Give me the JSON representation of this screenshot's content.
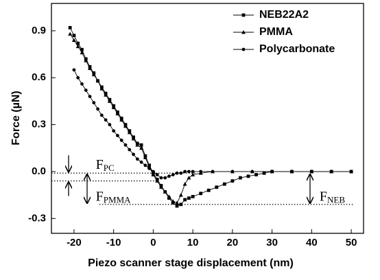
{
  "chart_data": {
    "type": "line",
    "xlabel": "Piezo scanner stage displacement (nm)",
    "ylabel": "Force (µN)",
    "xlim": [
      -25.7,
      53.1
    ],
    "ylim": [
      -0.395,
      1.075
    ],
    "xticks": [
      -20,
      -10,
      0,
      10,
      20,
      30,
      40,
      50
    ],
    "yticks": [
      -0.3,
      {
        "value": 0,
        "label": "0.0"
      },
      0.3,
      0.6,
      0.9
    ],
    "legend": "upper right",
    "series": [
      {
        "name": "NEB22A2",
        "marker": "square",
        "color": "#000000",
        "x": [
          -21,
          -20,
          -19,
          -18,
          -17,
          -16,
          -15,
          -14,
          -13,
          -12,
          -11,
          -10,
          -9,
          -8,
          -7,
          -6,
          -5,
          -4,
          -3,
          -2,
          -1,
          0,
          1,
          2,
          3,
          4,
          5,
          6,
          7,
          8,
          9,
          10,
          12,
          14,
          16,
          18,
          20,
          22,
          24,
          26,
          28,
          30,
          35,
          40,
          45,
          50
        ],
        "values": [
          0.92,
          0.87,
          0.82,
          0.78,
          0.72,
          0.67,
          0.63,
          0.58,
          0.54,
          0.5,
          0.46,
          0.42,
          0.38,
          0.34,
          0.3,
          0.26,
          0.22,
          0.18,
          0.17,
          0.1,
          0.04,
          -0.01,
          -0.05,
          -0.09,
          -0.13,
          -0.17,
          -0.2,
          -0.22,
          -0.21,
          -0.18,
          -0.17,
          -0.16,
          -0.14,
          -0.12,
          -0.1,
          -0.08,
          -0.06,
          -0.04,
          -0.03,
          -0.02,
          -0.01,
          0,
          0,
          0,
          0,
          0
        ]
      },
      {
        "name": "PMMA",
        "marker": "triangle",
        "color": "#000000",
        "x": [
          -21,
          -20,
          -19,
          -18,
          -17,
          -16,
          -15,
          -14,
          -13,
          -12,
          -11,
          -10,
          -9,
          -8,
          -7,
          -6,
          -5,
          -4,
          -3,
          -2,
          -1,
          0,
          1,
          2,
          3,
          4,
          5,
          6,
          7,
          8,
          9,
          10,
          12,
          15,
          20,
          25,
          30,
          35,
          40,
          45,
          50
        ],
        "values": [
          0.88,
          0.84,
          0.8,
          0.76,
          0.71,
          0.66,
          0.62,
          0.58,
          0.53,
          0.49,
          0.45,
          0.41,
          0.37,
          0.33,
          0.29,
          0.25,
          0.21,
          0.17,
          0.15,
          0.09,
          0.03,
          -0.02,
          -0.06,
          -0.1,
          -0.13,
          -0.16,
          -0.19,
          -0.2,
          -0.15,
          -0.08,
          -0.04,
          -0.02,
          -0.01,
          0,
          0,
          0,
          0,
          0,
          0,
          0,
          0
        ]
      },
      {
        "name": "Polycarbonate",
        "marker": "circle",
        "color": "#000000",
        "x": [
          -20,
          -19,
          -18,
          -17,
          -16,
          -15,
          -14,
          -13,
          -12,
          -11,
          -10,
          -9,
          -8,
          -7,
          -6,
          -5,
          -4,
          -3,
          -2,
          -1,
          0,
          1,
          2,
          3,
          4,
          5,
          6,
          7,
          8,
          9,
          10,
          12,
          15,
          20,
          25,
          30,
          35,
          40,
          45,
          50
        ],
        "values": [
          0.65,
          0.6,
          0.56,
          0.52,
          0.48,
          0.44,
          0.4,
          0.36,
          0.33,
          0.3,
          0.26,
          0.23,
          0.2,
          0.17,
          0.14,
          0.11,
          0.08,
          0.06,
          0.04,
          0.02,
          0,
          -0.02,
          -0.04,
          -0.04,
          -0.03,
          -0.02,
          -0.01,
          -0.01,
          0,
          0,
          0,
          0,
          0,
          0,
          0,
          0,
          0,
          0,
          0,
          0
        ]
      }
    ],
    "reference_lines": [
      {
        "y": -0.01,
        "x": [
          -25.7,
          10.7
        ]
      },
      {
        "y": -0.06,
        "x": [
          -25.7,
          1.1
        ]
      },
      {
        "y": -0.21,
        "x": [
          -13.6,
          50.5
        ]
      }
    ],
    "annotations": [
      {
        "text": "F",
        "subscript": "PC",
        "x": -14.5,
        "y": 0.04
      },
      {
        "text": "F",
        "subscript": "PMMA",
        "x": -14.5,
        "y": -0.165
      },
      {
        "text": "F",
        "subscript": "NEB",
        "x": 42,
        "y": -0.165
      }
    ]
  }
}
